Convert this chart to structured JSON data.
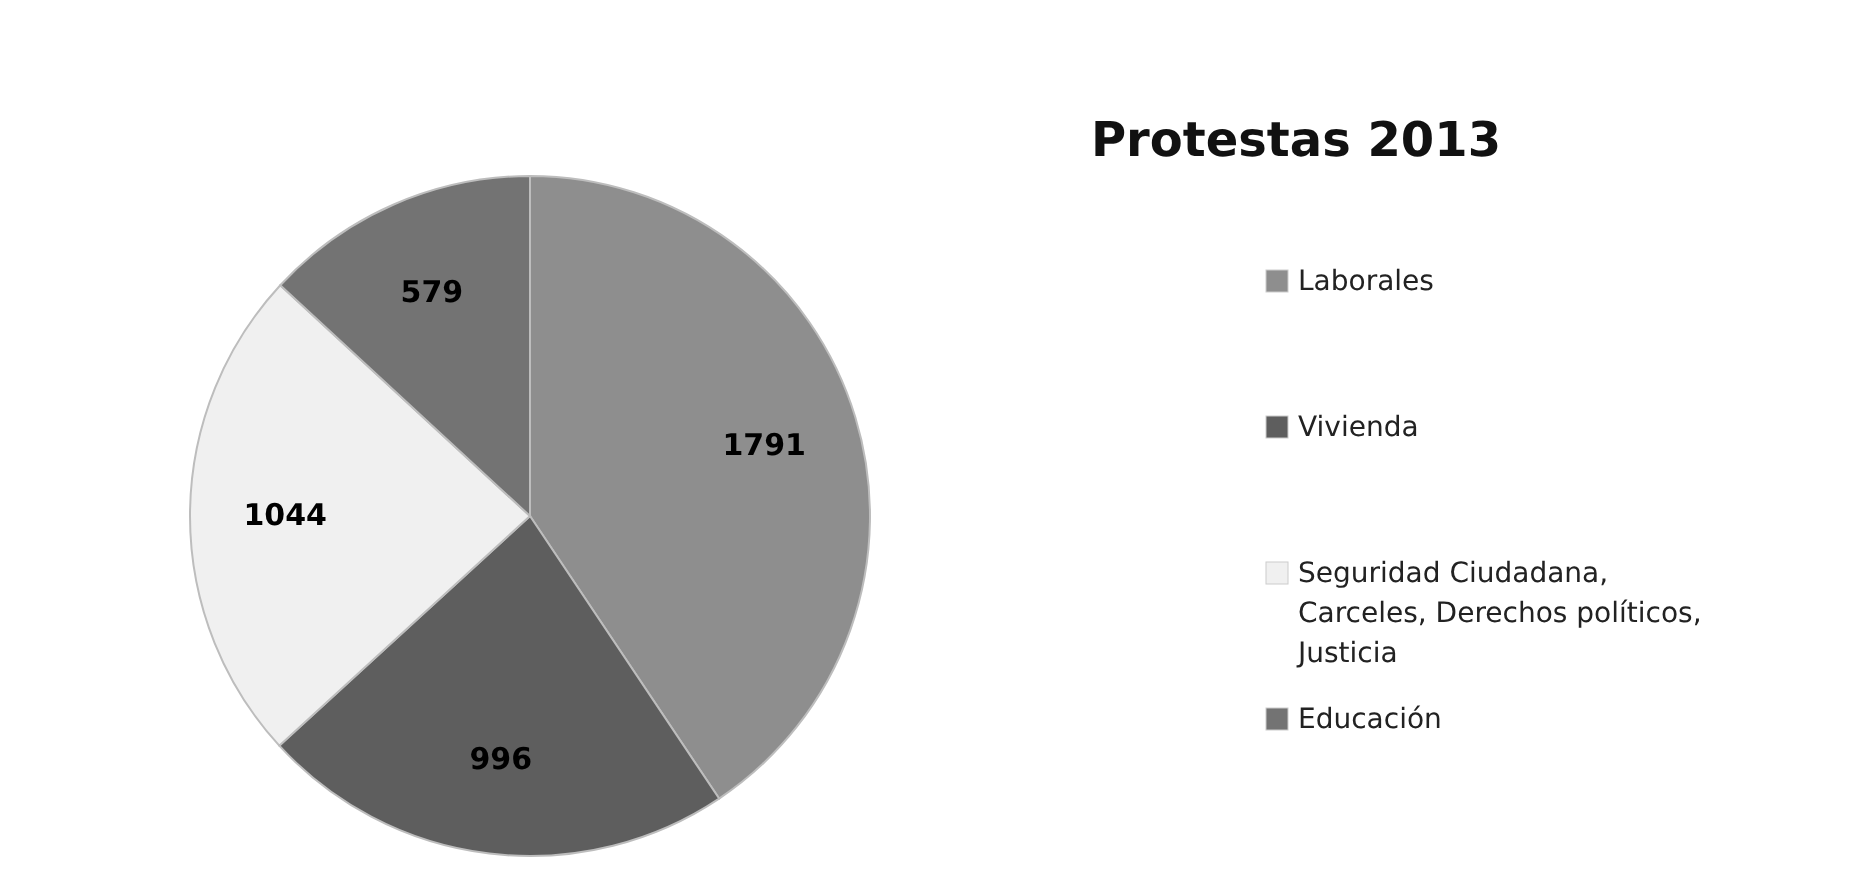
{
  "chart_data": {
    "type": "pie",
    "title": "Protestas 2013",
    "categories": [
      "Laborales",
      "Vivienda",
      "Seguridad Ciudadana, Carceles, Derechos políticos, Justicia",
      "Educación"
    ],
    "values": [
      1791,
      996,
      1044,
      579
    ],
    "colors": [
      "#8e8e8e",
      "#5e5e5e",
      "#f0f0f0",
      "#737373"
    ],
    "data_labels": true,
    "legend": "right"
  }
}
